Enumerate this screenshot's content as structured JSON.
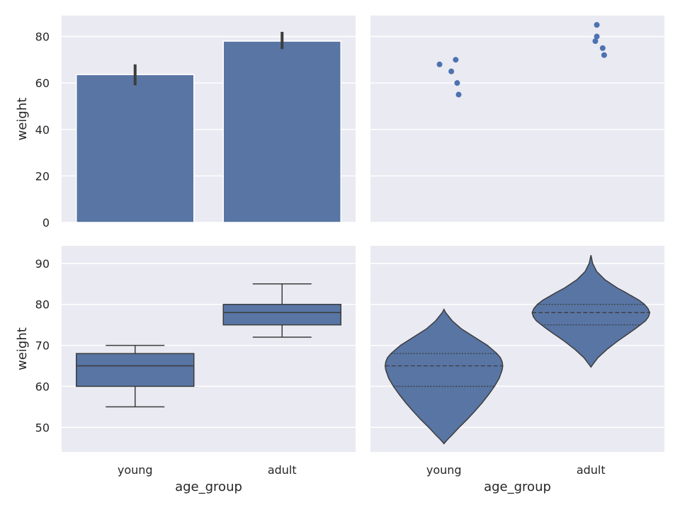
{
  "chart_data": [
    {
      "type": "bar",
      "categories": [
        "young",
        "adult"
      ],
      "values": [
        63.6,
        78.0
      ],
      "error_bars": [
        [
          59.0,
          68.0
        ],
        [
          74.6,
          82.0
        ]
      ],
      "ylabel": "weight",
      "xlabel": "",
      "ylim": [
        0,
        89
      ],
      "yticks": [
        0,
        20,
        40,
        60,
        80
      ],
      "grid": true
    },
    {
      "type": "scatter",
      "categories": [
        "young",
        "adult"
      ],
      "points": [
        {
          "category": "young",
          "y": 68,
          "jitter": -0.03
        },
        {
          "category": "young",
          "y": 70,
          "jitter": 0.08
        },
        {
          "category": "young",
          "y": 65,
          "jitter": 0.05
        },
        {
          "category": "young",
          "y": 60,
          "jitter": 0.09
        },
        {
          "category": "young",
          "y": 55,
          "jitter": 0.1
        },
        {
          "category": "adult",
          "y": 85,
          "jitter": 0.04
        },
        {
          "category": "adult",
          "y": 80,
          "jitter": 0.04
        },
        {
          "category": "adult",
          "y": 78,
          "jitter": 0.03
        },
        {
          "category": "adult",
          "y": 75,
          "jitter": 0.08
        },
        {
          "category": "adult",
          "y": 72,
          "jitter": 0.09
        }
      ],
      "ylim": [
        0,
        89
      ],
      "grid": true
    },
    {
      "type": "box",
      "categories": [
        "young",
        "adult"
      ],
      "boxes": [
        {
          "category": "young",
          "whisker_low": 55,
          "q1": 60,
          "median": 65,
          "q3": 68,
          "whisker_high": 70
        },
        {
          "category": "adult",
          "whisker_low": 72,
          "q1": 75,
          "median": 78,
          "q3": 80,
          "whisker_high": 85
        }
      ],
      "xlabel": "age_group",
      "ylabel": "weight",
      "ylim": [
        44,
        94.3
      ],
      "yticks": [
        50,
        60,
        70,
        80,
        90
      ],
      "grid": true
    },
    {
      "type": "violin",
      "categories": [
        "young",
        "adult"
      ],
      "violins": [
        {
          "category": "young",
          "quartiles": [
            60,
            65,
            68
          ],
          "profile": [
            [
              46,
              0
            ],
            [
              47,
              0.06
            ],
            [
              48,
              0.13
            ],
            [
              50,
              0.26
            ],
            [
              52,
              0.4
            ],
            [
              54,
              0.53
            ],
            [
              56,
              0.65
            ],
            [
              58,
              0.76
            ],
            [
              60,
              0.86
            ],
            [
              62,
              0.94
            ],
            [
              64,
              0.99
            ],
            [
              65,
              1.0
            ],
            [
              66,
              0.99
            ],
            [
              67,
              0.96
            ],
            [
              68,
              0.9
            ],
            [
              70,
              0.74
            ],
            [
              72,
              0.52
            ],
            [
              74,
              0.3
            ],
            [
              76,
              0.14
            ],
            [
              78,
              0.03
            ],
            [
              78.8,
              0
            ]
          ]
        },
        {
          "category": "adult",
          "quartiles": [
            75,
            78,
            80
          ],
          "profile": [
            [
              64.7,
              0
            ],
            [
              65.5,
              0.04
            ],
            [
              67,
              0.12
            ],
            [
              69,
              0.27
            ],
            [
              71,
              0.45
            ],
            [
              73,
              0.65
            ],
            [
              74,
              0.75
            ],
            [
              75,
              0.84
            ],
            [
              76,
              0.93
            ],
            [
              77,
              0.98
            ],
            [
              78,
              1.0
            ],
            [
              79,
              0.97
            ],
            [
              80,
              0.91
            ],
            [
              81,
              0.82
            ],
            [
              82,
              0.7
            ],
            [
              83,
              0.58
            ],
            [
              84,
              0.45
            ],
            [
              86,
              0.24
            ],
            [
              88,
              0.1
            ],
            [
              90,
              0.03
            ],
            [
              92,
              0
            ]
          ]
        }
      ],
      "xlabel": "age_group",
      "ylim": [
        44,
        94.3
      ],
      "grid": true
    }
  ],
  "colors": {
    "fill": "#5875a4",
    "point": "#4c72b0",
    "panel_bg": "#eaeaf2",
    "grid": "#ffffff",
    "line": "#3d3d3d",
    "text": "#262626"
  }
}
